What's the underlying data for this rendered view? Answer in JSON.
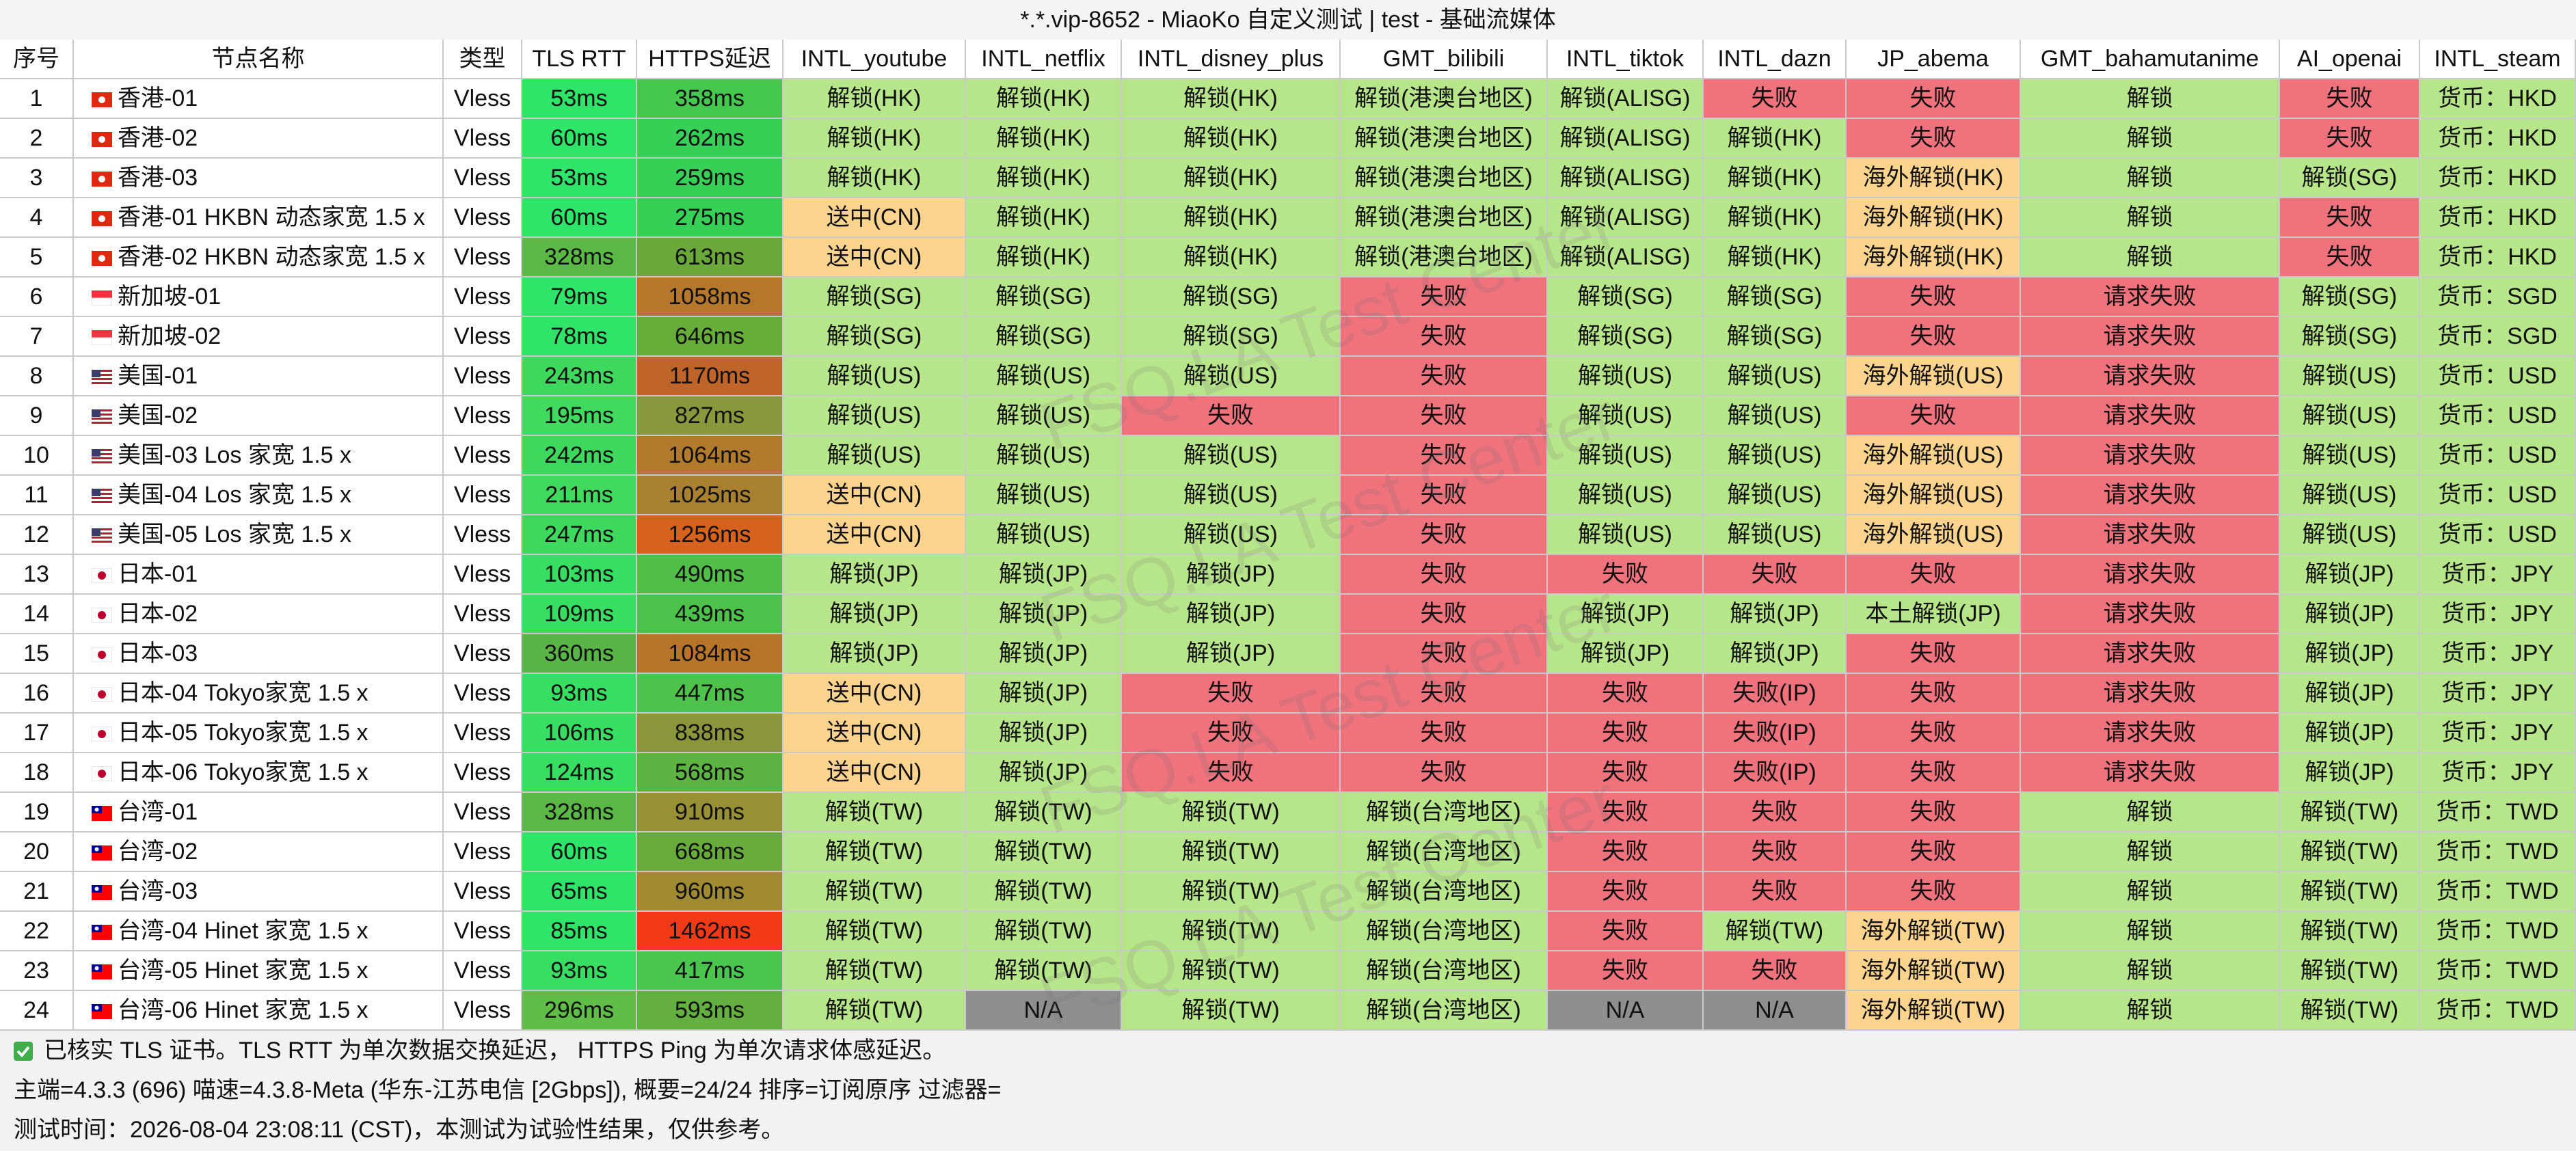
{
  "title": "*.*.vip-8652 - MiaoKo 自定义测试 | test - 基础流媒体",
  "table": {
    "header": [
      "序号",
      "节点名称",
      "类型",
      "TLS RTT",
      "HTTPS延迟",
      "INTL_youtube",
      "INTL_netflix",
      "INTL_disney_plus",
      "GMT_bilibili",
      "INTL_tiktok",
      "INTL_dazn",
      "JP_abema",
      "GMT_bahamutanime",
      "AI_openai",
      "INTL_steam"
    ],
    "rows": [
      [
        "1",
        "香港-01",
        "Vless",
        "53ms",
        "358ms",
        "解锁(HK)",
        "解锁(HK)",
        "解锁(HK)",
        "解锁(港澳台地区)",
        "解锁(ALISG)",
        "失败",
        "失败",
        "解锁",
        "失败",
        "货币：HKD"
      ],
      [
        "2",
        "香港-02",
        "Vless",
        "60ms",
        "262ms",
        "解锁(HK)",
        "解锁(HK)",
        "解锁(HK)",
        "解锁(港澳台地区)",
        "解锁(ALISG)",
        "解锁(HK)",
        "失败",
        "解锁",
        "失败",
        "货币：HKD"
      ],
      [
        "3",
        "香港-03",
        "Vless",
        "53ms",
        "259ms",
        "解锁(HK)",
        "解锁(HK)",
        "解锁(HK)",
        "解锁(港澳台地区)",
        "解锁(ALISG)",
        "解锁(HK)",
        "海外解锁(HK)",
        "解锁",
        "解锁(SG)",
        "货币：HKD"
      ],
      [
        "4",
        "香港-01 HKBN 动态家宽 1.5 x",
        "Vless",
        "60ms",
        "275ms",
        "送中(CN)",
        "解锁(HK)",
        "解锁(HK)",
        "解锁(港澳台地区)",
        "解锁(ALISG)",
        "解锁(HK)",
        "海外解锁(HK)",
        "解锁",
        "失败",
        "货币：HKD"
      ],
      [
        "5",
        "香港-02 HKBN 动态家宽 1.5 x",
        "Vless",
        "328ms",
        "613ms",
        "送中(CN)",
        "解锁(HK)",
        "解锁(HK)",
        "解锁(港澳台地区)",
        "解锁(ALISG)",
        "解锁(HK)",
        "海外解锁(HK)",
        "解锁",
        "失败",
        "货币：HKD"
      ],
      [
        "6",
        "新加坡-01",
        "Vless",
        "79ms",
        "1058ms",
        "解锁(SG)",
        "解锁(SG)",
        "解锁(SG)",
        "失败",
        "解锁(SG)",
        "解锁(SG)",
        "失败",
        "请求失败",
        "解锁(SG)",
        "货币：SGD"
      ],
      [
        "7",
        "新加坡-02",
        "Vless",
        "78ms",
        "646ms",
        "解锁(SG)",
        "解锁(SG)",
        "解锁(SG)",
        "失败",
        "解锁(SG)",
        "解锁(SG)",
        "失败",
        "请求失败",
        "解锁(SG)",
        "货币：SGD"
      ],
      [
        "8",
        "美国-01",
        "Vless",
        "243ms",
        "1170ms",
        "解锁(US)",
        "解锁(US)",
        "解锁(US)",
        "失败",
        "解锁(US)",
        "解锁(US)",
        "海外解锁(US)",
        "请求失败",
        "解锁(US)",
        "货币：USD"
      ],
      [
        "9",
        "美国-02",
        "Vless",
        "195ms",
        "827ms",
        "解锁(US)",
        "解锁(US)",
        "失败",
        "失败",
        "解锁(US)",
        "解锁(US)",
        "失败",
        "请求失败",
        "解锁(US)",
        "货币：USD"
      ],
      [
        "10",
        "美国-03 Los 家宽 1.5 x",
        "Vless",
        "242ms",
        "1064ms",
        "解锁(US)",
        "解锁(US)",
        "解锁(US)",
        "失败",
        "解锁(US)",
        "解锁(US)",
        "海外解锁(US)",
        "请求失败",
        "解锁(US)",
        "货币：USD"
      ],
      [
        "11",
        "美国-04 Los 家宽 1.5 x",
        "Vless",
        "211ms",
        "1025ms",
        "送中(CN)",
        "解锁(US)",
        "解锁(US)",
        "失败",
        "解锁(US)",
        "解锁(US)",
        "海外解锁(US)",
        "请求失败",
        "解锁(US)",
        "货币：USD"
      ],
      [
        "12",
        "美国-05 Los 家宽 1.5 x",
        "Vless",
        "247ms",
        "1256ms",
        "送中(CN)",
        "解锁(US)",
        "解锁(US)",
        "失败",
        "解锁(US)",
        "解锁(US)",
        "海外解锁(US)",
        "请求失败",
        "解锁(US)",
        "货币：USD"
      ],
      [
        "13",
        "日本-01",
        "Vless",
        "103ms",
        "490ms",
        "解锁(JP)",
        "解锁(JP)",
        "解锁(JP)",
        "失败",
        "失败",
        "失败",
        "失败",
        "请求失败",
        "解锁(JP)",
        "货币：JPY"
      ],
      [
        "14",
        "日本-02",
        "Vless",
        "109ms",
        "439ms",
        "解锁(JP)",
        "解锁(JP)",
        "解锁(JP)",
        "失败",
        "解锁(JP)",
        "解锁(JP)",
        "本土解锁(JP)",
        "请求失败",
        "解锁(JP)",
        "货币：JPY"
      ],
      [
        "15",
        "日本-03",
        "Vless",
        "360ms",
        "1084ms",
        "解锁(JP)",
        "解锁(JP)",
        "解锁(JP)",
        "失败",
        "解锁(JP)",
        "解锁(JP)",
        "失败",
        "请求失败",
        "解锁(JP)",
        "货币：JPY"
      ],
      [
        "16",
        "日本-04 Tokyo家宽 1.5 x",
        "Vless",
        "93ms",
        "447ms",
        "送中(CN)",
        "解锁(JP)",
        "失败",
        "失败",
        "失败",
        "失败(IP)",
        "失败",
        "请求失败",
        "解锁(JP)",
        "货币：JPY"
      ],
      [
        "17",
        "日本-05 Tokyo家宽 1.5 x",
        "Vless",
        "106ms",
        "838ms",
        "送中(CN)",
        "解锁(JP)",
        "失败",
        "失败",
        "失败",
        "失败(IP)",
        "失败",
        "请求失败",
        "解锁(JP)",
        "货币：JPY"
      ],
      [
        "18",
        "日本-06 Tokyo家宽 1.5 x",
        "Vless",
        "124ms",
        "568ms",
        "送中(CN)",
        "解锁(JP)",
        "失败",
        "失败",
        "失败",
        "失败(IP)",
        "失败",
        "请求失败",
        "解锁(JP)",
        "货币：JPY"
      ],
      [
        "19",
        "台湾-01",
        "Vless",
        "328ms",
        "910ms",
        "解锁(TW)",
        "解锁(TW)",
        "解锁(TW)",
        "解锁(台湾地区)",
        "失败",
        "失败",
        "失败",
        "解锁",
        "解锁(TW)",
        "货币：TWD"
      ],
      [
        "20",
        "台湾-02",
        "Vless",
        "60ms",
        "668ms",
        "解锁(TW)",
        "解锁(TW)",
        "解锁(TW)",
        "解锁(台湾地区)",
        "失败",
        "失败",
        "失败",
        "解锁",
        "解锁(TW)",
        "货币：TWD"
      ],
      [
        "21",
        "台湾-03",
        "Vless",
        "65ms",
        "960ms",
        "解锁(TW)",
        "解锁(TW)",
        "解锁(TW)",
        "解锁(台湾地区)",
        "失败",
        "失败",
        "失败",
        "解锁",
        "解锁(TW)",
        "货币：TWD"
      ],
      [
        "22",
        "台湾-04 Hinet 家宽 1.5 x",
        "Vless",
        "85ms",
        "1462ms",
        "解锁(TW)",
        "解锁(TW)",
        "解锁(TW)",
        "解锁(台湾地区)",
        "失败",
        "解锁(TW)",
        "海外解锁(TW)",
        "解锁",
        "解锁(TW)",
        "货币：TWD"
      ],
      [
        "23",
        "台湾-05 Hinet 家宽 1.5 x",
        "Vless",
        "93ms",
        "417ms",
        "解锁(TW)",
        "解锁(TW)",
        "解锁(TW)",
        "解锁(台湾地区)",
        "失败",
        "失败",
        "海外解锁(TW)",
        "解锁",
        "解锁(TW)",
        "货币：TWD"
      ],
      [
        "24",
        "台湾-06 Hinet 家宽 1.5 x",
        "Vless",
        "296ms",
        "593ms",
        "解锁(TW)",
        "N/A",
        "解锁(TW)",
        "解锁(台湾地区)",
        "N/A",
        "N/A",
        "海外解锁(TW)",
        "解锁",
        "解锁(TW)",
        "货币：TWD"
      ]
    ],
    "colors": [
      [
        "#ffffff",
        "#ffffff",
        "#ffffff",
        "#2ee56a",
        "#44c84e",
        "#b7e68a",
        "#b7e68a",
        "#b7e68a",
        "#b7e68a",
        "#b7e68a",
        "#f0727c",
        "#f0727c",
        "#b7e68a",
        "#f0727c",
        "#b7e68a"
      ],
      [
        "#ffffff",
        "#ffffff",
        "#ffffff",
        "#2ee56a",
        "#37d057",
        "#b7e68a",
        "#b7e68a",
        "#b7e68a",
        "#b7e68a",
        "#b7e68a",
        "#b7e68a",
        "#f0727c",
        "#b7e68a",
        "#f0727c",
        "#b7e68a"
      ],
      [
        "#ffffff",
        "#ffffff",
        "#ffffff",
        "#2ee56a",
        "#37d057",
        "#b7e68a",
        "#b7e68a",
        "#b7e68a",
        "#b7e68a",
        "#b7e68a",
        "#b7e68a",
        "#fcd48e",
        "#b7e68a",
        "#b7e68a",
        "#b7e68a"
      ],
      [
        "#ffffff",
        "#ffffff",
        "#ffffff",
        "#2ee56a",
        "#37d057",
        "#fcd48e",
        "#b7e68a",
        "#b7e68a",
        "#b7e68a",
        "#b7e68a",
        "#b7e68a",
        "#fcd48e",
        "#b7e68a",
        "#f0727c",
        "#b7e68a"
      ],
      [
        "#ffffff",
        "#ffffff",
        "#ffffff",
        "#5ab845",
        "#6aa939",
        "#fcd48e",
        "#b7e68a",
        "#b7e68a",
        "#b7e68a",
        "#b7e68a",
        "#b7e68a",
        "#fcd48e",
        "#b7e68a",
        "#f0727c",
        "#b7e68a"
      ],
      [
        "#ffffff",
        "#ffffff",
        "#ffffff",
        "#2ee56a",
        "#b5772c",
        "#b7e68a",
        "#b7e68a",
        "#b7e68a",
        "#f0727c",
        "#b7e68a",
        "#b7e68a",
        "#f0727c",
        "#f0727c",
        "#b7e68a",
        "#b7e68a"
      ],
      [
        "#ffffff",
        "#ffffff",
        "#ffffff",
        "#2ee56a",
        "#66ad3a",
        "#b7e68a",
        "#b7e68a",
        "#b7e68a",
        "#f0727c",
        "#b7e68a",
        "#b7e68a",
        "#f0727c",
        "#f0727c",
        "#b7e68a",
        "#b7e68a"
      ],
      [
        "#ffffff",
        "#ffffff",
        "#ffffff",
        "#3fd85e",
        "#c0652a",
        "#b7e68a",
        "#b7e68a",
        "#b7e68a",
        "#f0727c",
        "#b7e68a",
        "#b7e68a",
        "#fcd48e",
        "#f0727c",
        "#b7e68a",
        "#b7e68a"
      ],
      [
        "#ffffff",
        "#ffffff",
        "#ffffff",
        "#40da5e",
        "#88983a",
        "#b7e68a",
        "#b7e68a",
        "#f0727c",
        "#f0727c",
        "#b7e68a",
        "#b7e68a",
        "#f0727c",
        "#f0727c",
        "#b7e68a",
        "#b7e68a"
      ],
      [
        "#ffffff",
        "#ffffff",
        "#ffffff",
        "#3fd85e",
        "#b27a2d",
        "#b7e68a",
        "#b7e68a",
        "#b7e68a",
        "#f0727c",
        "#b7e68a",
        "#b7e68a",
        "#fcd48e",
        "#f0727c",
        "#b7e68a",
        "#b7e68a"
      ],
      [
        "#ffffff",
        "#ffffff",
        "#ffffff",
        "#40da5e",
        "#a9802f",
        "#fcd48e",
        "#b7e68a",
        "#b7e68a",
        "#f0727c",
        "#b7e68a",
        "#b7e68a",
        "#fcd48e",
        "#f0727c",
        "#b7e68a",
        "#b7e68a"
      ],
      [
        "#ffffff",
        "#ffffff",
        "#ffffff",
        "#3fd85e",
        "#d6621e",
        "#fcd48e",
        "#b7e68a",
        "#b7e68a",
        "#f0727c",
        "#b7e68a",
        "#b7e68a",
        "#fcd48e",
        "#f0727c",
        "#b7e68a",
        "#b7e68a"
      ],
      [
        "#ffffff",
        "#ffffff",
        "#ffffff",
        "#36de62",
        "#50be47",
        "#b7e68a",
        "#b7e68a",
        "#b7e68a",
        "#f0727c",
        "#f0727c",
        "#f0727c",
        "#f0727c",
        "#f0727c",
        "#b7e68a",
        "#b7e68a"
      ],
      [
        "#ffffff",
        "#ffffff",
        "#ffffff",
        "#36de62",
        "#4dc24b",
        "#b7e68a",
        "#b7e68a",
        "#b7e68a",
        "#f0727c",
        "#b7e68a",
        "#b7e68a",
        "#b7e68a",
        "#f0727c",
        "#b7e68a",
        "#b7e68a"
      ],
      [
        "#ffffff",
        "#ffffff",
        "#ffffff",
        "#58b545",
        "#b87529",
        "#b7e68a",
        "#b7e68a",
        "#b7e68a",
        "#f0727c",
        "#b7e68a",
        "#b7e68a",
        "#f0727c",
        "#f0727c",
        "#b7e68a",
        "#b7e68a"
      ],
      [
        "#ffffff",
        "#ffffff",
        "#ffffff",
        "#36de62",
        "#4ec24b",
        "#fcd48e",
        "#b7e68a",
        "#f0727c",
        "#f0727c",
        "#f0727c",
        "#f0727c",
        "#f0727c",
        "#f0727c",
        "#b7e68a",
        "#b7e68a"
      ],
      [
        "#ffffff",
        "#ffffff",
        "#ffffff",
        "#36de62",
        "#8a9639",
        "#fcd48e",
        "#b7e68a",
        "#f0727c",
        "#f0727c",
        "#f0727c",
        "#f0727c",
        "#f0727c",
        "#f0727c",
        "#b7e68a",
        "#b7e68a"
      ],
      [
        "#ffffff",
        "#ffffff",
        "#ffffff",
        "#36de62",
        "#5eb443",
        "#fcd48e",
        "#b7e68a",
        "#f0727c",
        "#f0727c",
        "#f0727c",
        "#f0727c",
        "#f0727c",
        "#f0727c",
        "#b7e68a",
        "#b7e68a"
      ],
      [
        "#ffffff",
        "#ffffff",
        "#ffffff",
        "#5ab845",
        "#979035",
        "#b7e68a",
        "#b7e68a",
        "#b7e68a",
        "#b7e68a",
        "#f0727c",
        "#f0727c",
        "#f0727c",
        "#b7e68a",
        "#b7e68a",
        "#b7e68a"
      ],
      [
        "#ffffff",
        "#ffffff",
        "#ffffff",
        "#2ee56a",
        "#67ac3b",
        "#b7e68a",
        "#b7e68a",
        "#b7e68a",
        "#b7e68a",
        "#f0727c",
        "#f0727c",
        "#f0727c",
        "#b7e68a",
        "#b7e68a",
        "#b7e68a"
      ],
      [
        "#ffffff",
        "#ffffff",
        "#ffffff",
        "#2ee56a",
        "#a08a32",
        "#b7e68a",
        "#b7e68a",
        "#b7e68a",
        "#b7e68a",
        "#f0727c",
        "#f0727c",
        "#f0727c",
        "#b7e68a",
        "#b7e68a",
        "#b7e68a"
      ],
      [
        "#ffffff",
        "#ffffff",
        "#ffffff",
        "#2ee56a",
        "#f23a18",
        "#b7e68a",
        "#b7e68a",
        "#b7e68a",
        "#b7e68a",
        "#f0727c",
        "#b7e68a",
        "#fcd48e",
        "#b7e68a",
        "#b7e68a",
        "#b7e68a"
      ],
      [
        "#ffffff",
        "#ffffff",
        "#ffffff",
        "#36de62",
        "#48c64e",
        "#b7e68a",
        "#b7e68a",
        "#b7e68a",
        "#b7e68a",
        "#f0727c",
        "#f0727c",
        "#fcd48e",
        "#b7e68a",
        "#b7e68a",
        "#b7e68a"
      ],
      [
        "#ffffff",
        "#ffffff",
        "#ffffff",
        "#5fbd48",
        "#63af3f",
        "#b7e68a",
        "#8e8e8e",
        "#b7e68a",
        "#b7e68a",
        "#8e8e8e",
        "#8e8e8e",
        "#fcd48e",
        "#b7e68a",
        "#b7e68a",
        "#b7e68a"
      ]
    ]
  },
  "footer": [
    "已核实 TLS 证书。TLS RTT 为单次数据交换延迟， HTTPS Ping 为单次请求体感延迟。",
    "主端=4.3.3 (696) 喵速=4.3.8-Meta (华东-江苏电信 [2Gbps]), 概要=24/24 排序=订阅原序 过滤器=",
    "测试时间：2026-08-04 23:08:11 (CST)，本测试为试验性结果，仅供参考。"
  ],
  "watermark": "FSQ.LA Test Center"
}
